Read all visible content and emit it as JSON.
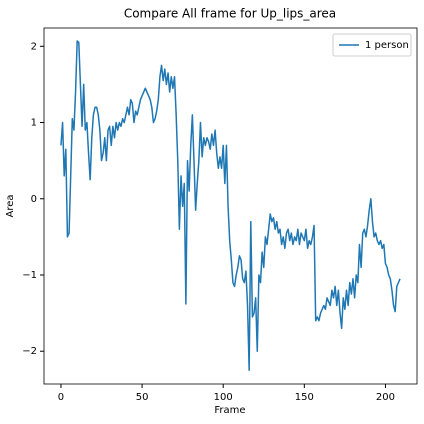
{
  "chart_data": {
    "type": "line",
    "title": "Compare All frame for Up_lips_area",
    "xlabel": "Frame",
    "ylabel": "Area",
    "x": [
      0,
      1,
      2,
      3,
      4,
      5,
      6,
      7,
      8,
      9,
      10,
      11,
      12,
      13,
      14,
      15,
      16,
      17,
      18,
      19,
      20,
      21,
      22,
      23,
      24,
      25,
      26,
      27,
      28,
      29,
      30,
      31,
      32,
      33,
      34,
      35,
      36,
      37,
      38,
      39,
      40,
      41,
      42,
      43,
      44,
      45,
      46,
      47,
      48,
      49,
      50,
      51,
      52,
      53,
      54,
      55,
      56,
      57,
      58,
      59,
      60,
      61,
      62,
      63,
      64,
      65,
      66,
      67,
      68,
      69,
      70,
      71,
      72,
      73,
      74,
      75,
      76,
      77,
      78,
      79,
      80,
      81,
      82,
      83,
      84,
      85,
      86,
      87,
      88,
      89,
      90,
      91,
      92,
      93,
      94,
      95,
      96,
      97,
      98,
      99,
      100,
      101,
      102,
      103,
      104,
      105,
      106,
      107,
      108,
      109,
      110,
      111,
      112,
      113,
      114,
      115,
      116,
      117,
      118,
      119,
      120,
      121,
      122,
      123,
      124,
      125,
      126,
      127,
      128,
      129,
      130,
      131,
      132,
      133,
      134,
      135,
      136,
      137,
      138,
      139,
      140,
      141,
      142,
      143,
      144,
      145,
      146,
      147,
      148,
      149,
      150,
      151,
      152,
      153,
      154,
      155,
      156,
      157,
      158,
      159,
      160,
      161,
      162,
      163,
      164,
      165,
      166,
      167,
      168,
      169,
      170,
      171,
      172,
      173,
      174,
      175,
      176,
      177,
      178,
      179,
      180,
      181,
      182,
      183,
      184,
      185,
      186,
      187,
      188,
      189,
      190,
      191,
      192,
      193,
      194,
      195,
      196,
      197,
      198,
      199,
      200,
      201,
      202,
      203,
      204,
      205,
      206,
      207,
      208,
      209
    ],
    "series": [
      {
        "name": "1 person",
        "color": "#1f77b4",
        "values": [
          0.7,
          1.0,
          0.3,
          0.65,
          -0.5,
          -0.45,
          0.3,
          1.05,
          0.9,
          1.4,
          2.07,
          2.05,
          1.5,
          0.95,
          1.5,
          0.9,
          1.0,
          0.6,
          0.25,
          0.8,
          1.1,
          1.2,
          1.2,
          1.1,
          0.9,
          0.5,
          0.6,
          0.8,
          0.5,
          0.9,
          0.95,
          0.7,
          0.95,
          0.8,
          1.0,
          0.9,
          1.0,
          0.95,
          1.05,
          1.0,
          1.1,
          1.2,
          1.1,
          1.3,
          1.25,
          1.0,
          1.15,
          1.1,
          1.2,
          1.3,
          1.35,
          1.4,
          1.45,
          1.4,
          1.35,
          1.3,
          1.2,
          1.0,
          1.05,
          1.15,
          1.3,
          1.6,
          1.75,
          1.55,
          1.7,
          1.5,
          1.65,
          1.4,
          1.6,
          1.45,
          1.6,
          1.1,
          0.5,
          -0.4,
          0.3,
          -0.1,
          0.2,
          -1.38,
          0.5,
          0.1,
          0.7,
          1.1,
          0.5,
          -0.15,
          0.2,
          0.5,
          1.0,
          0.55,
          0.8,
          0.7,
          0.8,
          0.75,
          0.65,
          0.85,
          0.7,
          0.9,
          0.6,
          0.4,
          0.55,
          0.4,
          0.7,
          0.2,
          0.7,
          -0.1,
          -0.55,
          -0.8,
          -1.1,
          -1.15,
          -1.0,
          -0.9,
          -0.75,
          -0.8,
          -1.05,
          -1.1,
          -0.95,
          -1.4,
          -2.25,
          -0.3,
          -1.55,
          -1.5,
          -1.3,
          -2.0,
          -1.0,
          -1.1,
          -0.7,
          -0.9,
          -0.5,
          -0.6,
          -0.4,
          -0.2,
          -0.3,
          -0.25,
          -0.4,
          -0.3,
          -0.45,
          -0.4,
          -0.6,
          -0.5,
          -0.65,
          -0.45,
          -0.4,
          -0.55,
          -0.45,
          -0.6,
          -0.5,
          -0.55,
          -0.4,
          -0.6,
          -0.45,
          -0.5,
          -0.55,
          -0.4,
          -0.65,
          -0.55,
          -0.6,
          -0.5,
          -0.35,
          -1.6,
          -1.55,
          -1.6,
          -1.5,
          -1.45,
          -1.4,
          -1.45,
          -1.3,
          -1.35,
          -1.4,
          -1.2,
          -1.3,
          -1.15,
          -1.4,
          -1.2,
          -1.5,
          -1.7,
          -1.3,
          -1.45,
          -1.2,
          -1.4,
          -1.1,
          -1.25,
          -1.05,
          -1.3,
          -1.0,
          -1.1,
          -0.6,
          -0.9,
          -0.45,
          -0.4,
          -0.5,
          -0.35,
          -0.15,
          0.0,
          -0.3,
          -0.5,
          -0.45,
          -0.55,
          -0.6,
          -0.55,
          -0.65,
          -0.6,
          -0.85,
          -0.9,
          -1.0,
          -1.05,
          -1.2,
          -1.4,
          -1.48,
          -1.15,
          -1.1,
          -1.05
        ]
      }
    ],
    "xlim": [
      -10.45,
      219.45
    ],
    "xticks": [
      0,
      50,
      100,
      150,
      200
    ],
    "ylim": [
      -2.43,
      2.24
    ],
    "yticks": [
      {
        "value": -2,
        "label": "−2"
      },
      {
        "value": -1,
        "label": "−1"
      },
      0,
      1,
      2
    ],
    "grid": false,
    "legend": "upper right"
  }
}
